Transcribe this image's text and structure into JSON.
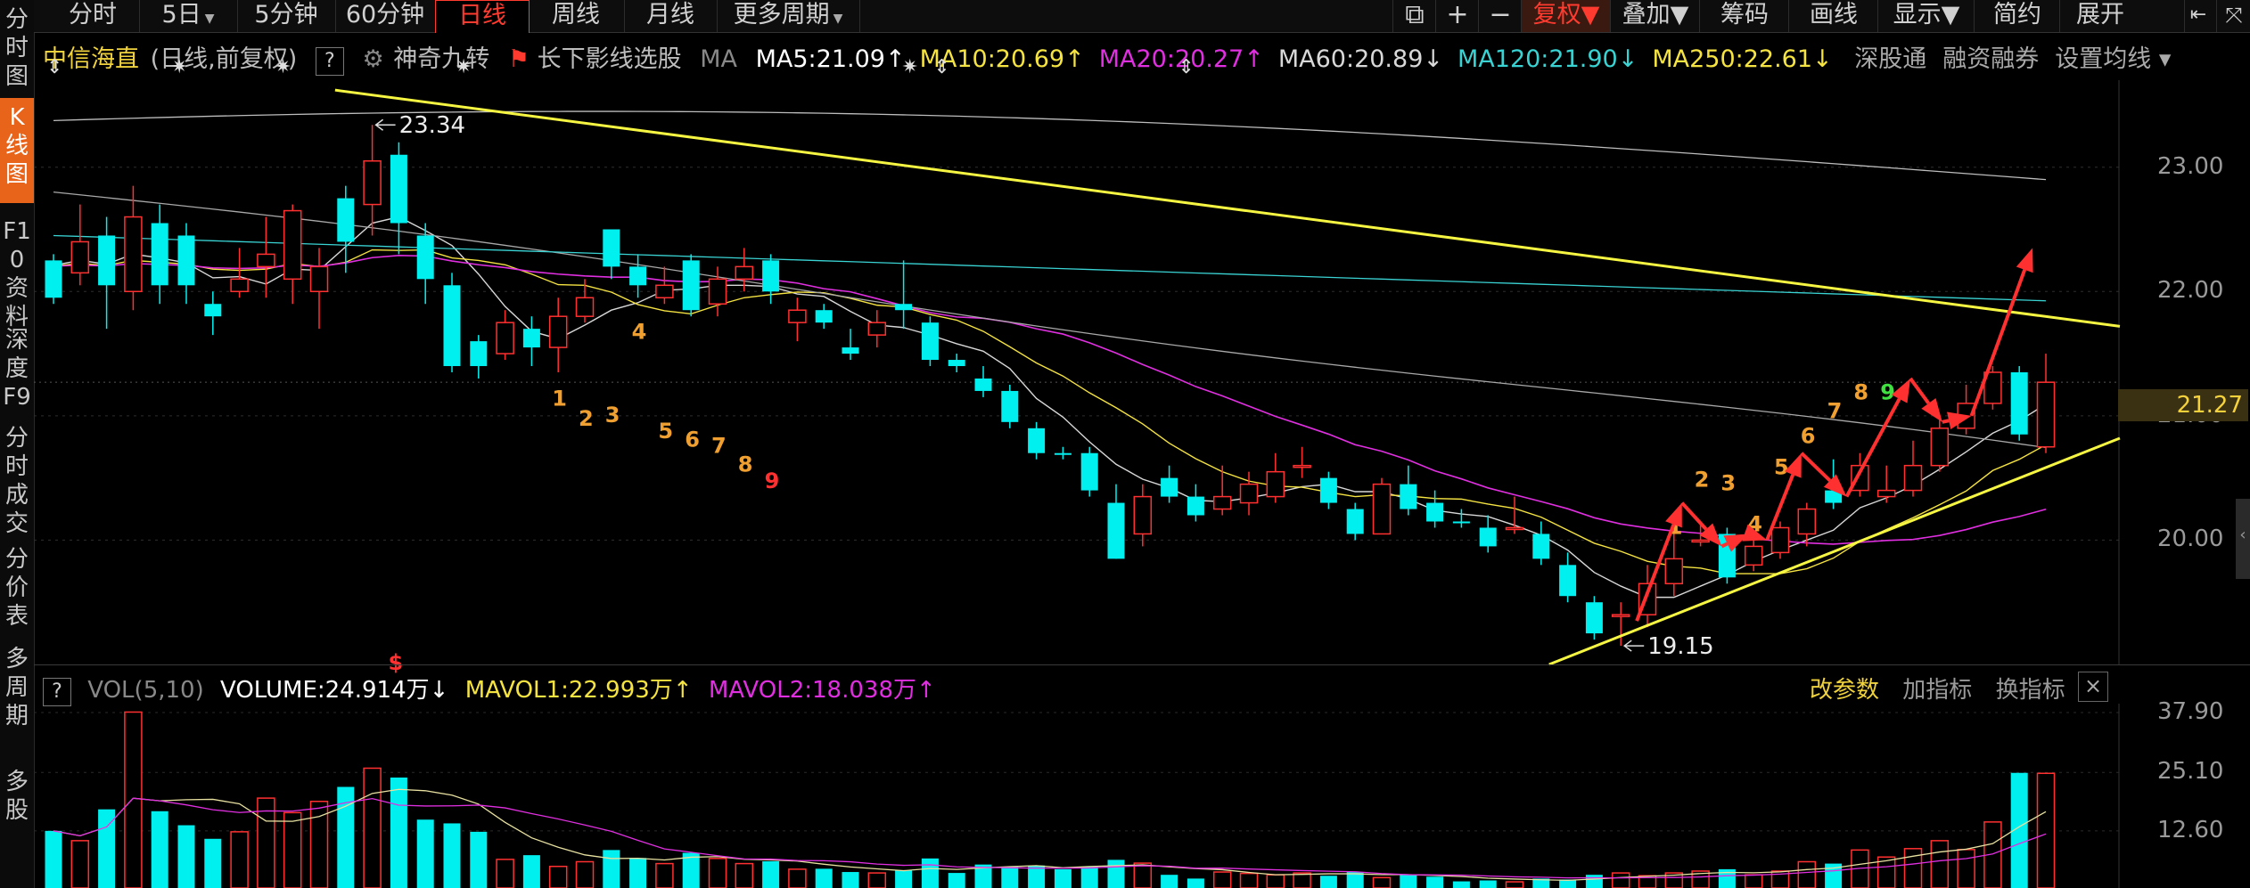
{
  "left_nav": [
    {
      "label": "分时图",
      "active": false
    },
    {
      "label": "K线图",
      "active": true
    },
    {
      "label": "F10资料",
      "active": false
    },
    {
      "label": "深度F9",
      "active": false
    },
    {
      "label": "分时成交",
      "active": false
    },
    {
      "label": "分价表",
      "active": false
    },
    {
      "label": "多周期",
      "active": false
    },
    {
      "label": "多股",
      "active": false
    }
  ],
  "period_tabs": [
    {
      "label": "分时",
      "dropdown": false,
      "active": false
    },
    {
      "label": "5日",
      "dropdown": true,
      "active": false
    },
    {
      "label": "5分钟",
      "dropdown": false,
      "active": false
    },
    {
      "label": "60分钟",
      "dropdown": false,
      "active": false
    },
    {
      "label": "日线",
      "dropdown": false,
      "active": true
    },
    {
      "label": "周线",
      "dropdown": false,
      "active": false
    },
    {
      "label": "月线",
      "dropdown": false,
      "active": false
    },
    {
      "label": "更多周期",
      "dropdown": true,
      "active": false
    }
  ],
  "right_toolbar": [
    {
      "label": "复权",
      "dropdown": true,
      "active": true
    },
    {
      "label": "叠加",
      "dropdown": true,
      "active": false
    },
    {
      "label": "筹码",
      "dropdown": false,
      "active": false
    },
    {
      "label": "画线",
      "dropdown": false,
      "active": false
    },
    {
      "label": "显示",
      "dropdown": true,
      "active": false
    },
    {
      "label": "简约",
      "dropdown": false,
      "active": false
    },
    {
      "label": "展开",
      "dropdown": false,
      "active": false
    }
  ],
  "header": {
    "stock_name": "中信海直",
    "period_info": "(日线,前复权)",
    "help": "?",
    "indicator1": "神奇九转",
    "indicator2": "长下影线选股",
    "ma_label": "MA",
    "ma": [
      {
        "text": "MA5:21.09",
        "arrow": "↑",
        "color": "#ffffff"
      },
      {
        "text": "MA10:20.69",
        "arrow": "↑",
        "color": "#f5e342"
      },
      {
        "text": "MA20:20.27",
        "arrow": "↑",
        "color": "#e02fe0"
      },
      {
        "text": "MA60:20.89",
        "arrow": "↓",
        "color": "#d8d8d8"
      },
      {
        "text": "MA120:21.90",
        "arrow": "↓",
        "color": "#3ad3d3"
      },
      {
        "text": "MA250:22.61",
        "arrow": "↓",
        "color": "#f5e342"
      }
    ],
    "links": [
      "深股通",
      "融资融券",
      "设置均线"
    ]
  },
  "price_axis": {
    "ticks": [
      "23.00",
      "22.00",
      "21.00",
      "20.00"
    ],
    "current": "21.27"
  },
  "annotations": {
    "high_label": "23.34",
    "low_label": "19.15",
    "td_first": [
      "1",
      "2",
      "3",
      "4",
      "5",
      "6",
      "7",
      "8",
      "9"
    ],
    "td_second": [
      "1",
      "2",
      "3",
      "4",
      "5",
      "6",
      "7",
      "8",
      "9"
    ]
  },
  "volume": {
    "help": "?",
    "title": "VOL(5,10)",
    "volume": "VOLUME:24.914万",
    "volume_arrow": "↓",
    "mavol1": "MAVOL1:22.993万",
    "mavol1_arrow": "↑",
    "mavol2": "MAVOL2:18.038万",
    "mavol2_arrow": "↑",
    "buttons": [
      "改参数",
      "加指标",
      "换指标"
    ],
    "close": "×",
    "axis": [
      "37.90",
      "25.10",
      "12.60"
    ]
  },
  "colors": {
    "up": "#ff3030",
    "down": "#00f0f0",
    "trendline": "#f5f542",
    "td_orange": "#f0a030",
    "td_green": "#40e040",
    "td_red": "#ff3030"
  },
  "chart_data": {
    "type": "candlestick",
    "price_range": [
      19.0,
      23.7
    ],
    "volume_range": [
      0,
      37.9
    ],
    "candles": [
      [
        21.95,
        22.25,
        22.3,
        21.9,
        "d",
        12.6
      ],
      [
        22.15,
        22.4,
        22.7,
        22.05,
        "u",
        10.5
      ],
      [
        22.45,
        22.05,
        22.6,
        21.7,
        "d",
        17.2
      ],
      [
        22.0,
        22.6,
        22.85,
        21.85,
        "u",
        38.0
      ],
      [
        22.55,
        22.05,
        22.7,
        21.9,
        "d",
        16.8
      ],
      [
        22.45,
        22.05,
        22.55,
        21.9,
        "d",
        13.8
      ],
      [
        21.9,
        21.8,
        22.0,
        21.65,
        "d",
        10.9
      ],
      [
        22.0,
        22.1,
        22.35,
        21.95,
        "u",
        12.4
      ],
      [
        22.2,
        22.3,
        22.6,
        21.95,
        "u",
        19.6
      ],
      [
        22.1,
        22.65,
        22.7,
        21.9,
        "u",
        16.5
      ],
      [
        22.2,
        22.0,
        22.35,
        21.7,
        "u",
        18.9
      ],
      [
        22.4,
        22.75,
        22.85,
        22.15,
        "d",
        22.0
      ],
      [
        22.7,
        23.05,
        23.34,
        22.45,
        "u",
        26.0
      ],
      [
        23.1,
        22.55,
        23.2,
        22.3,
        "d",
        24.0
      ],
      [
        22.45,
        22.1,
        22.55,
        21.9,
        "d",
        15.0
      ],
      [
        22.05,
        21.4,
        22.15,
        21.35,
        "d",
        14.2
      ],
      [
        21.4,
        21.6,
        21.65,
        21.3,
        "d",
        12.4
      ],
      [
        21.5,
        21.75,
        21.85,
        21.45,
        "u",
        6.5
      ],
      [
        21.7,
        21.55,
        21.8,
        21.4,
        "d",
        7.4
      ],
      [
        21.55,
        21.8,
        21.95,
        21.35,
        "u",
        5.0
      ],
      [
        21.8,
        21.95,
        22.1,
        21.75,
        "u",
        6.0
      ],
      [
        22.5,
        22.2,
        22.5,
        22.1,
        "d",
        8.5
      ],
      [
        22.2,
        22.05,
        22.3,
        21.95,
        "d",
        6.8
      ],
      [
        21.95,
        22.05,
        22.2,
        21.9,
        "u",
        5.6
      ],
      [
        22.25,
        21.85,
        22.3,
        21.8,
        "d",
        7.9
      ],
      [
        21.9,
        22.1,
        22.2,
        21.8,
        "u",
        6.7
      ],
      [
        22.1,
        22.2,
        22.35,
        22.0,
        "u",
        5.6
      ],
      [
        22.25,
        22.0,
        22.3,
        21.9,
        "d",
        6.1
      ],
      [
        21.85,
        21.75,
        21.95,
        21.6,
        "u",
        4.4
      ],
      [
        21.85,
        21.75,
        21.9,
        21.7,
        "d",
        4.5
      ],
      [
        21.55,
        21.5,
        21.7,
        21.45,
        "d",
        3.8
      ],
      [
        21.75,
        21.65,
        21.85,
        21.55,
        "u",
        3.6
      ],
      [
        21.85,
        21.9,
        22.25,
        21.7,
        "d",
        4.1
      ],
      [
        21.75,
        21.45,
        21.8,
        21.4,
        "d",
        6.7
      ],
      [
        21.45,
        21.4,
        21.5,
        21.35,
        "d",
        3.6
      ],
      [
        21.3,
        21.2,
        21.4,
        21.15,
        "d",
        5.4
      ],
      [
        21.2,
        20.95,
        21.25,
        20.9,
        "d",
        4.9
      ],
      [
        20.9,
        20.7,
        20.95,
        20.65,
        "d",
        5.2
      ],
      [
        20.7,
        20.7,
        20.75,
        20.65,
        "d",
        4.4
      ],
      [
        20.7,
        20.4,
        20.75,
        20.35,
        "d",
        4.9
      ],
      [
        19.85,
        20.3,
        20.45,
        19.85,
        "d",
        6.4
      ],
      [
        20.05,
        20.35,
        20.45,
        19.95,
        "u",
        5.7
      ],
      [
        20.5,
        20.35,
        20.6,
        20.3,
        "d",
        3.2
      ],
      [
        20.35,
        20.2,
        20.45,
        20.15,
        "d",
        2.4
      ],
      [
        20.25,
        20.35,
        20.6,
        20.2,
        "u",
        3.8
      ],
      [
        20.3,
        20.45,
        20.55,
        20.2,
        "u",
        3.5
      ],
      [
        20.35,
        20.55,
        20.7,
        20.3,
        "u",
        3.2
      ],
      [
        20.6,
        20.6,
        20.75,
        20.5,
        "u",
        3.6
      ],
      [
        20.5,
        20.3,
        20.55,
        20.25,
        "d",
        3.0
      ],
      [
        20.25,
        20.05,
        20.3,
        20.0,
        "d",
        3.8
      ],
      [
        20.05,
        20.45,
        20.5,
        20.05,
        "u",
        2.6
      ],
      [
        20.45,
        20.25,
        20.6,
        20.2,
        "d",
        3.2
      ],
      [
        20.3,
        20.15,
        20.4,
        20.1,
        "d",
        2.8
      ],
      [
        20.15,
        20.15,
        20.25,
        20.1,
        "d",
        1.8
      ],
      [
        20.1,
        19.95,
        20.2,
        19.9,
        "d",
        2.0
      ],
      [
        20.1,
        20.1,
        20.35,
        20.05,
        "u",
        1.7
      ],
      [
        20.05,
        19.85,
        20.15,
        19.8,
        "d",
        2.4
      ],
      [
        19.8,
        19.55,
        19.9,
        19.5,
        "d",
        2.2
      ],
      [
        19.5,
        19.25,
        19.55,
        19.2,
        "d",
        3.2
      ],
      [
        19.4,
        19.4,
        19.5,
        19.15,
        "u",
        3.6
      ],
      [
        19.4,
        19.65,
        19.8,
        19.3,
        "u",
        3.0
      ],
      [
        19.65,
        19.85,
        20.05,
        19.55,
        "u",
        3.6
      ],
      [
        20.0,
        20.0,
        20.15,
        19.95,
        "u",
        4.0
      ],
      [
        20.05,
        19.7,
        20.1,
        19.65,
        "d",
        4.4
      ],
      [
        19.8,
        19.95,
        20.0,
        19.75,
        "u",
        3.2
      ],
      [
        19.9,
        20.1,
        20.15,
        19.85,
        "u",
        4.0
      ],
      [
        20.05,
        20.25,
        20.3,
        19.95,
        "u",
        6.0
      ],
      [
        20.3,
        20.4,
        20.65,
        20.25,
        "d",
        5.6
      ],
      [
        20.4,
        20.6,
        20.7,
        20.35,
        "u",
        8.5
      ],
      [
        20.4,
        20.35,
        20.6,
        20.3,
        "u",
        7.0
      ],
      [
        20.4,
        20.6,
        20.8,
        20.35,
        "u",
        8.8
      ],
      [
        20.6,
        20.9,
        21.0,
        20.55,
        "u",
        10.5
      ],
      [
        20.9,
        21.1,
        21.25,
        20.85,
        "u",
        8.6
      ],
      [
        21.1,
        21.35,
        21.4,
        21.05,
        "u",
        14.5
      ],
      [
        21.35,
        20.85,
        21.4,
        20.8,
        "d",
        25.0
      ],
      [
        20.75,
        21.27,
        21.5,
        20.7,
        "u",
        24.9
      ]
    ]
  }
}
